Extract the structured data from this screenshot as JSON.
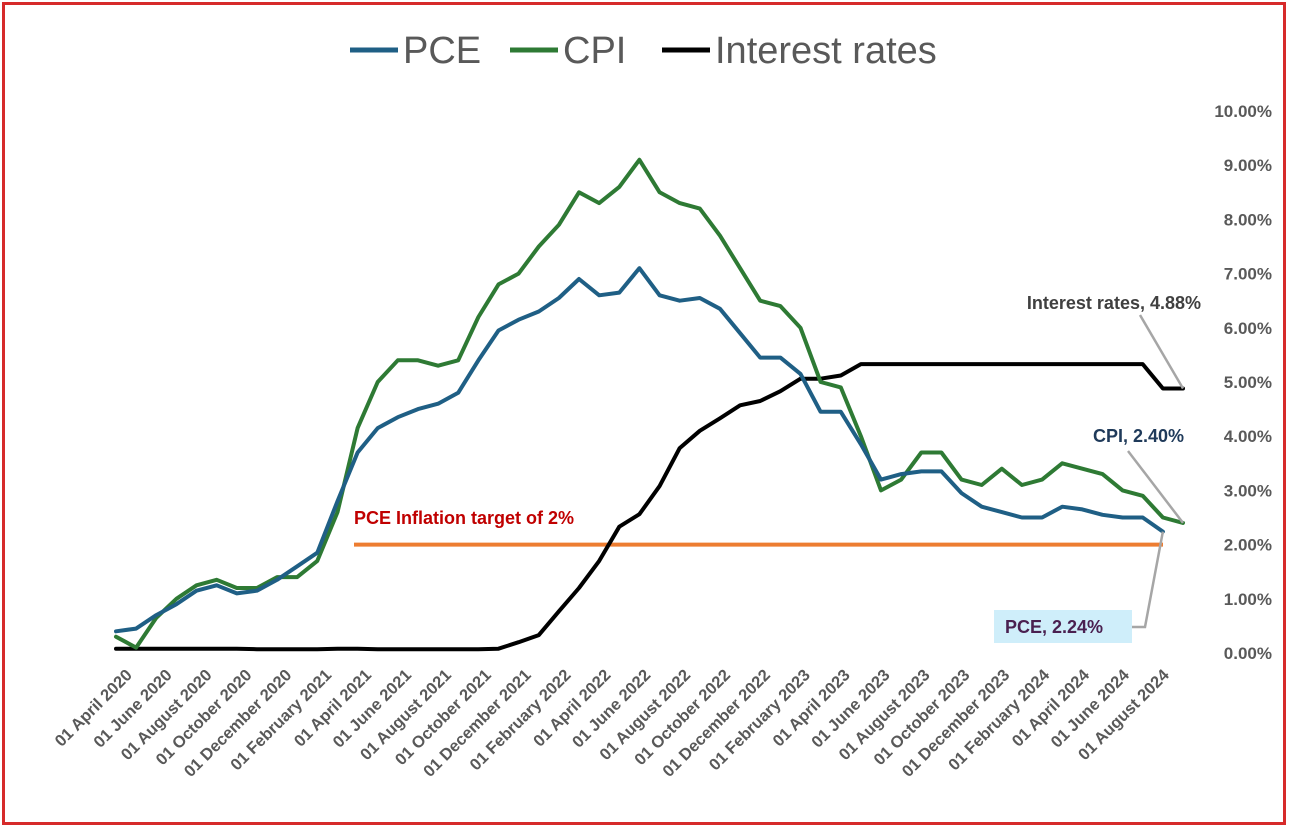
{
  "chart_data": {
    "type": "line",
    "title": "",
    "xlabel": "",
    "ylabel": "",
    "ylim": [
      0,
      10
    ],
    "y_axis_position": "right",
    "y_ticks": [
      "0.00%",
      "1.00%",
      "2.00%",
      "3.00%",
      "4.00%",
      "5.00%",
      "6.00%",
      "7.00%",
      "8.00%",
      "9.00%",
      "10.00%"
    ],
    "x_tick_labels": [
      "01 April 2020",
      "01 June 2020",
      "01 August 2020",
      "01 October 2020",
      "01 December 2020",
      "01 February 2021",
      "01 April 2021",
      "01 June 2021",
      "01 August 2021",
      "01 October 2021",
      "01 December 2021",
      "01 February 2022",
      "01 April 2022",
      "01 June 2022",
      "01 August 2022",
      "01 October 2022",
      "01 December 2022",
      "01 February 2023",
      "01 April 2023",
      "01 June 2023",
      "01 August 2023",
      "01 October 2023",
      "01 December 2023",
      "01 February 2024",
      "01 April 2024",
      "01 June 2024",
      "01 August 2024"
    ],
    "legend": [
      "PCE",
      "CPI",
      "Interest rates"
    ],
    "legend_position": "top-center",
    "series": [
      {
        "name": "PCE",
        "color": "#1f5f85",
        "values": [
          0.4,
          0.45,
          0.7,
          0.9,
          1.15,
          1.25,
          1.1,
          1.15,
          1.35,
          1.6,
          1.85,
          2.8,
          3.7,
          4.15,
          4.35,
          4.5,
          4.6,
          4.8,
          5.4,
          5.95,
          6.15,
          6.3,
          6.55,
          6.9,
          6.6,
          6.65,
          7.1,
          6.6,
          6.5,
          6.55,
          6.35,
          5.9,
          5.45,
          5.45,
          5.15,
          4.45,
          4.45,
          3.85,
          3.2,
          3.3,
          3.35,
          3.35,
          2.95,
          2.7,
          2.6,
          2.5,
          2.5,
          2.7,
          2.65,
          2.55,
          2.5,
          2.5,
          2.24
        ]
      },
      {
        "name": "CPI",
        "color": "#2e7a34",
        "values": [
          0.3,
          0.1,
          0.65,
          1.0,
          1.25,
          1.35,
          1.2,
          1.2,
          1.4,
          1.4,
          1.7,
          2.6,
          4.15,
          5.0,
          5.4,
          5.4,
          5.3,
          5.4,
          6.2,
          6.8,
          7.0,
          7.5,
          7.9,
          8.5,
          8.3,
          8.6,
          9.1,
          8.5,
          8.3,
          8.2,
          7.7,
          7.1,
          6.5,
          6.4,
          6.0,
          5.0,
          4.9,
          4.0,
          3.0,
          3.2,
          3.7,
          3.7,
          3.2,
          3.1,
          3.4,
          3.1,
          3.2,
          3.5,
          3.4,
          3.3,
          3.0,
          2.9,
          2.5,
          2.4
        ]
      },
      {
        "name": "Interest rates",
        "color": "#000000",
        "values": [
          0.08,
          0.08,
          0.08,
          0.08,
          0.08,
          0.08,
          0.08,
          0.07,
          0.07,
          0.07,
          0.07,
          0.08,
          0.08,
          0.07,
          0.07,
          0.07,
          0.07,
          0.07,
          0.07,
          0.08,
          0.2,
          0.33,
          0.77,
          1.2,
          1.7,
          2.33,
          2.56,
          3.08,
          3.78,
          4.1,
          4.33,
          4.57,
          4.65,
          4.83,
          5.06,
          5.06,
          5.12,
          5.33,
          5.33,
          5.33,
          5.33,
          5.33,
          5.33,
          5.33,
          5.33,
          5.33,
          5.33,
          5.33,
          5.33,
          5.33,
          5.33,
          5.33,
          4.88,
          4.88
        ]
      }
    ],
    "target_line": {
      "label": "PCE Inflation target of 2%",
      "value": 2.0,
      "color": "#ed7d31",
      "label_color": "#c00000"
    },
    "annotations": [
      {
        "series": "Interest rates",
        "text": "Interest rates, 4.88%",
        "color": "#404040"
      },
      {
        "series": "CPI",
        "text": "CPI, 2.40%",
        "color": "#1f3a5a"
      },
      {
        "series": "PCE",
        "text": "PCE, 2.24%",
        "color": "#4a2050",
        "background": "#cfeefa"
      }
    ]
  }
}
